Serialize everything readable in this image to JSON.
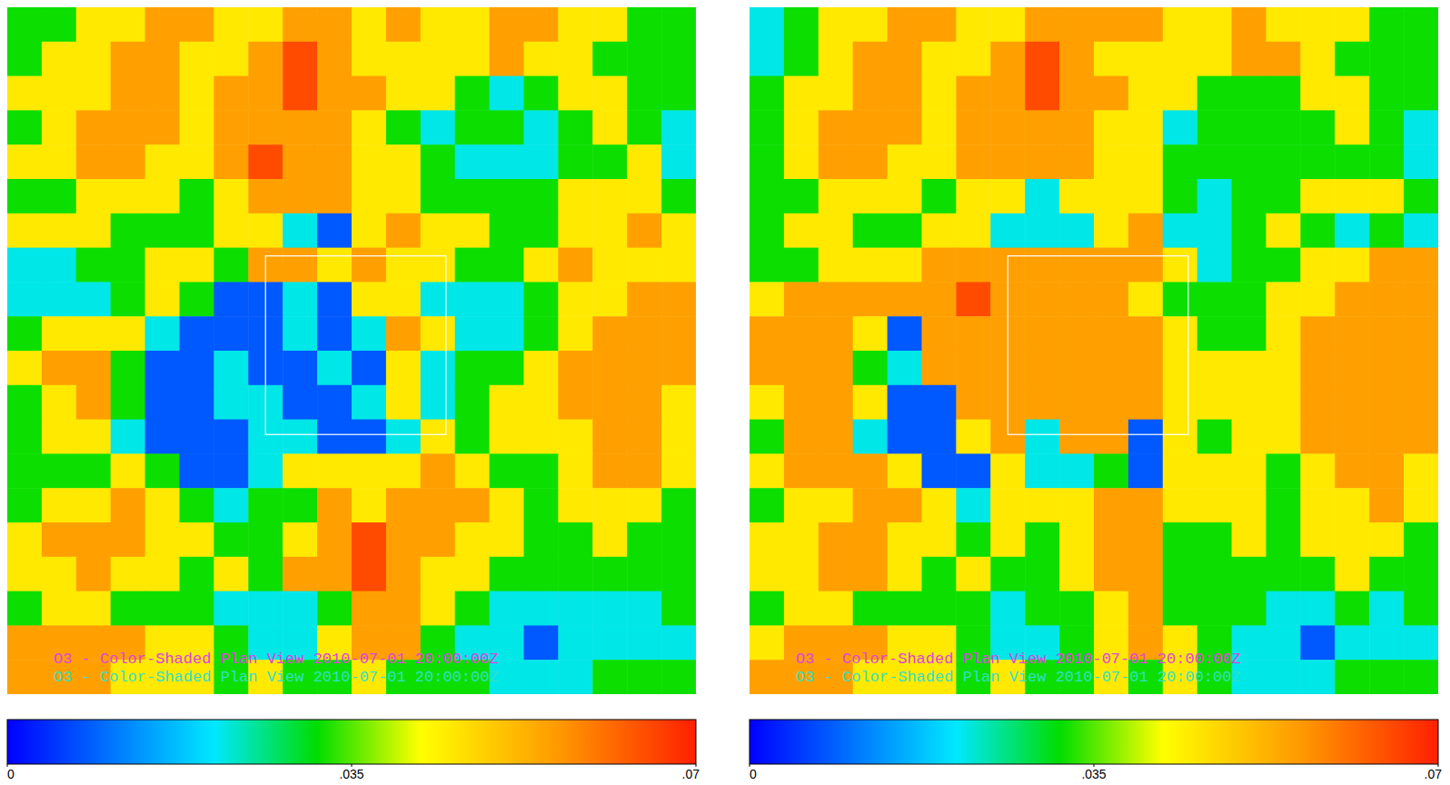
{
  "chart_data": [
    {
      "type": "heatmap",
      "tick_labels": false,
      "annotations": [
        "O3 - Color-Shaded Plan View 2010-07-01 20:00:00Z",
        "O3 - Color-Shaded Plan View 2010-07-01 20:00:00Z"
      ],
      "colorbar": {
        "range": [
          0,
          0.07
        ],
        "ticks": [
          0,
          {
            "value": 0.035,
            "label": ".035"
          },
          {
            "value": 0.07,
            "label": ".07"
          }
        ]
      },
      "cells": [
        [
          0.032,
          0.032,
          0.045,
          0.045,
          0.055,
          0.055,
          0.045,
          0.045,
          0.055,
          0.055,
          0.045,
          0.055,
          0.045,
          0.045,
          0.055,
          0.055,
          0.045,
          0.045,
          0.032,
          0.032
        ],
        [
          0.032,
          0.045,
          0.045,
          0.055,
          0.055,
          0.045,
          0.045,
          0.055,
          0.065,
          0.055,
          0.045,
          0.045,
          0.045,
          0.045,
          0.055,
          0.045,
          0.045,
          0.032,
          0.032,
          0.032
        ],
        [
          0.045,
          0.045,
          0.045,
          0.055,
          0.055,
          0.045,
          0.055,
          0.055,
          0.065,
          0.055,
          0.055,
          0.045,
          0.045,
          0.032,
          0.022,
          0.032,
          0.045,
          0.045,
          0.032,
          0.032
        ],
        [
          0.032,
          0.045,
          0.055,
          0.055,
          0.055,
          0.045,
          0.055,
          0.055,
          0.055,
          0.055,
          0.045,
          0.032,
          0.022,
          0.032,
          0.032,
          0.022,
          0.032,
          0.045,
          0.032,
          0.022
        ],
        [
          0.045,
          0.045,
          0.055,
          0.055,
          0.045,
          0.045,
          0.055,
          0.065,
          0.055,
          0.055,
          0.045,
          0.045,
          0.032,
          0.022,
          0.022,
          0.022,
          0.032,
          0.032,
          0.045,
          0.022
        ],
        [
          0.032,
          0.032,
          0.045,
          0.045,
          0.045,
          0.032,
          0.045,
          0.055,
          0.055,
          0.055,
          0.045,
          0.045,
          0.032,
          0.032,
          0.032,
          0.032,
          0.045,
          0.045,
          0.045,
          0.032
        ],
        [
          0.045,
          0.045,
          0.045,
          0.032,
          0.032,
          0.032,
          0.045,
          0.045,
          0.022,
          0.008,
          0.045,
          0.055,
          0.045,
          0.045,
          0.032,
          0.032,
          0.045,
          0.045,
          0.055,
          0.045
        ],
        [
          0.022,
          0.022,
          0.032,
          0.032,
          0.045,
          0.045,
          0.032,
          0.055,
          0.055,
          0.045,
          0.055,
          0.045,
          0.045,
          0.032,
          0.032,
          0.045,
          0.055,
          0.045,
          0.045,
          0.045
        ],
        [
          0.022,
          0.022,
          0.022,
          0.032,
          0.045,
          0.032,
          0.008,
          0.008,
          0.022,
          0.008,
          0.045,
          0.045,
          0.022,
          0.022,
          0.022,
          0.032,
          0.045,
          0.045,
          0.055,
          0.055
        ],
        [
          0.032,
          0.045,
          0.045,
          0.045,
          0.022,
          0.008,
          0.008,
          0.008,
          0.022,
          0.008,
          0.022,
          0.055,
          0.045,
          0.022,
          0.022,
          0.032,
          0.045,
          0.055,
          0.055,
          0.055
        ],
        [
          0.045,
          0.055,
          0.055,
          0.032,
          0.008,
          0.008,
          0.022,
          0.008,
          0.008,
          0.022,
          0.008,
          0.045,
          0.022,
          0.032,
          0.032,
          0.045,
          0.055,
          0.055,
          0.055,
          0.055
        ],
        [
          0.032,
          0.045,
          0.055,
          0.032,
          0.008,
          0.008,
          0.022,
          0.022,
          0.008,
          0.008,
          0.022,
          0.045,
          0.022,
          0.032,
          0.045,
          0.045,
          0.055,
          0.055,
          0.055,
          0.045
        ],
        [
          0.032,
          0.045,
          0.045,
          0.022,
          0.008,
          0.008,
          0.008,
          0.022,
          0.022,
          0.008,
          0.008,
          0.022,
          0.045,
          0.032,
          0.045,
          0.045,
          0.045,
          0.055,
          0.055,
          0.045
        ],
        [
          0.032,
          0.032,
          0.032,
          0.045,
          0.032,
          0.008,
          0.008,
          0.022,
          0.045,
          0.045,
          0.045,
          0.045,
          0.055,
          0.045,
          0.032,
          0.032,
          0.045,
          0.055,
          0.055,
          0.045
        ],
        [
          0.032,
          0.045,
          0.045,
          0.055,
          0.045,
          0.032,
          0.022,
          0.032,
          0.032,
          0.055,
          0.045,
          0.055,
          0.055,
          0.055,
          0.045,
          0.032,
          0.045,
          0.045,
          0.045,
          0.032
        ],
        [
          0.045,
          0.055,
          0.055,
          0.055,
          0.045,
          0.045,
          0.032,
          0.032,
          0.045,
          0.055,
          0.065,
          0.055,
          0.055,
          0.045,
          0.045,
          0.032,
          0.032,
          0.045,
          0.032,
          0.032
        ],
        [
          0.045,
          0.045,
          0.055,
          0.045,
          0.045,
          0.032,
          0.045,
          0.032,
          0.055,
          0.055,
          0.065,
          0.055,
          0.045,
          0.045,
          0.032,
          0.032,
          0.032,
          0.032,
          0.032,
          0.032
        ],
        [
          0.032,
          0.045,
          0.045,
          0.032,
          0.032,
          0.032,
          0.022,
          0.022,
          0.022,
          0.032,
          0.055,
          0.055,
          0.045,
          0.032,
          0.022,
          0.022,
          0.022,
          0.022,
          0.022,
          0.032
        ],
        [
          0.055,
          0.055,
          0.055,
          0.055,
          0.045,
          0.045,
          0.032,
          0.022,
          0.022,
          0.045,
          0.055,
          0.055,
          0.032,
          0.022,
          0.022,
          0.008,
          0.022,
          0.022,
          0.022,
          0.022
        ],
        [
          0.055,
          0.055,
          0.055,
          0.045,
          0.045,
          0.045,
          0.032,
          0.045,
          0.032,
          0.032,
          0.045,
          0.032,
          0.032,
          0.032,
          0.022,
          0.022,
          0.022,
          0.032,
          0.032,
          0.032
        ]
      ]
    },
    {
      "type": "heatmap",
      "tick_labels": false,
      "annotations": [
        "O3 - Color-Shaded Plan View 2010-07-01 20:00:00Z",
        "O3 - Color-Shaded Plan View 2010-07-01 20:00:00Z"
      ],
      "colorbar": {
        "range": [
          0,
          0.07
        ],
        "ticks": [
          0,
          {
            "value": 0.035,
            "label": ".035"
          },
          {
            "value": 0.07,
            "label": ".07"
          }
        ]
      },
      "cells": [
        [
          0.022,
          0.032,
          0.045,
          0.045,
          0.055,
          0.055,
          0.045,
          0.045,
          0.055,
          0.055,
          0.055,
          0.055,
          0.045,
          0.045,
          0.055,
          0.045,
          0.045,
          0.045,
          0.032,
          0.032
        ],
        [
          0.022,
          0.032,
          0.045,
          0.055,
          0.055,
          0.045,
          0.045,
          0.055,
          0.065,
          0.055,
          0.045,
          0.045,
          0.045,
          0.045,
          0.055,
          0.055,
          0.045,
          0.032,
          0.032,
          0.032
        ],
        [
          0.032,
          0.045,
          0.045,
          0.055,
          0.055,
          0.045,
          0.055,
          0.055,
          0.065,
          0.055,
          0.055,
          0.045,
          0.045,
          0.032,
          0.032,
          0.032,
          0.045,
          0.045,
          0.032,
          0.032
        ],
        [
          0.032,
          0.045,
          0.055,
          0.055,
          0.055,
          0.045,
          0.055,
          0.055,
          0.055,
          0.055,
          0.045,
          0.045,
          0.022,
          0.032,
          0.032,
          0.032,
          0.032,
          0.045,
          0.032,
          0.022
        ],
        [
          0.032,
          0.045,
          0.055,
          0.055,
          0.045,
          0.045,
          0.055,
          0.055,
          0.055,
          0.055,
          0.045,
          0.045,
          0.032,
          0.032,
          0.032,
          0.032,
          0.032,
          0.032,
          0.032,
          0.022
        ],
        [
          0.032,
          0.032,
          0.045,
          0.045,
          0.045,
          0.032,
          0.045,
          0.045,
          0.022,
          0.045,
          0.045,
          0.045,
          0.032,
          0.022,
          0.032,
          0.032,
          0.045,
          0.045,
          0.045,
          0.032
        ],
        [
          0.032,
          0.045,
          0.045,
          0.032,
          0.032,
          0.045,
          0.045,
          0.022,
          0.022,
          0.022,
          0.045,
          0.055,
          0.022,
          0.022,
          0.032,
          0.045,
          0.032,
          0.022,
          0.032,
          0.022
        ],
        [
          0.032,
          0.032,
          0.045,
          0.045,
          0.045,
          0.055,
          0.055,
          0.055,
          0.055,
          0.055,
          0.055,
          0.055,
          0.045,
          0.022,
          0.032,
          0.032,
          0.045,
          0.045,
          0.055,
          0.055
        ],
        [
          0.045,
          0.055,
          0.055,
          0.055,
          0.055,
          0.055,
          0.065,
          0.055,
          0.055,
          0.055,
          0.055,
          0.045,
          0.032,
          0.032,
          0.032,
          0.045,
          0.045,
          0.055,
          0.055,
          0.055
        ],
        [
          0.055,
          0.055,
          0.055,
          0.045,
          0.008,
          0.055,
          0.055,
          0.055,
          0.055,
          0.055,
          0.055,
          0.055,
          0.045,
          0.032,
          0.032,
          0.045,
          0.055,
          0.055,
          0.055,
          0.055
        ],
        [
          0.055,
          0.055,
          0.055,
          0.032,
          0.022,
          0.055,
          0.055,
          0.055,
          0.055,
          0.055,
          0.055,
          0.055,
          0.045,
          0.045,
          0.045,
          0.045,
          0.055,
          0.055,
          0.055,
          0.055
        ],
        [
          0.045,
          0.055,
          0.055,
          0.045,
          0.008,
          0.008,
          0.055,
          0.055,
          0.055,
          0.055,
          0.055,
          0.055,
          0.045,
          0.045,
          0.045,
          0.045,
          0.055,
          0.055,
          0.055,
          0.055
        ],
        [
          0.032,
          0.055,
          0.055,
          0.022,
          0.008,
          0.008,
          0.045,
          0.055,
          0.022,
          0.055,
          0.055,
          0.008,
          0.045,
          0.032,
          0.045,
          0.045,
          0.055,
          0.055,
          0.055,
          0.055
        ],
        [
          0.045,
          0.055,
          0.055,
          0.055,
          0.045,
          0.008,
          0.008,
          0.045,
          0.022,
          0.022,
          0.032,
          0.008,
          0.045,
          0.045,
          0.045,
          0.032,
          0.045,
          0.055,
          0.055,
          0.045
        ],
        [
          0.032,
          0.045,
          0.045,
          0.055,
          0.055,
          0.045,
          0.022,
          0.045,
          0.045,
          0.045,
          0.055,
          0.055,
          0.045,
          0.045,
          0.045,
          0.032,
          0.045,
          0.045,
          0.055,
          0.045
        ],
        [
          0.045,
          0.045,
          0.055,
          0.055,
          0.045,
          0.045,
          0.032,
          0.045,
          0.032,
          0.045,
          0.055,
          0.055,
          0.032,
          0.032,
          0.045,
          0.032,
          0.045,
          0.045,
          0.045,
          0.032
        ],
        [
          0.045,
          0.045,
          0.055,
          0.055,
          0.045,
          0.032,
          0.045,
          0.032,
          0.032,
          0.045,
          0.055,
          0.055,
          0.032,
          0.032,
          0.032,
          0.032,
          0.032,
          0.045,
          0.032,
          0.032
        ],
        [
          0.032,
          0.045,
          0.045,
          0.032,
          0.032,
          0.032,
          0.032,
          0.022,
          0.032,
          0.032,
          0.045,
          0.055,
          0.032,
          0.032,
          0.032,
          0.022,
          0.022,
          0.032,
          0.022,
          0.032
        ],
        [
          0.045,
          0.055,
          0.055,
          0.055,
          0.045,
          0.045,
          0.032,
          0.022,
          0.022,
          0.032,
          0.045,
          0.055,
          0.045,
          0.032,
          0.022,
          0.022,
          0.008,
          0.022,
          0.022,
          0.022
        ],
        [
          0.055,
          0.055,
          0.055,
          0.045,
          0.045,
          0.045,
          0.032,
          0.045,
          0.032,
          0.032,
          0.045,
          0.032,
          0.045,
          0.032,
          0.022,
          0.022,
          0.022,
          0.032,
          0.032,
          0.032
        ]
      ]
    }
  ]
}
